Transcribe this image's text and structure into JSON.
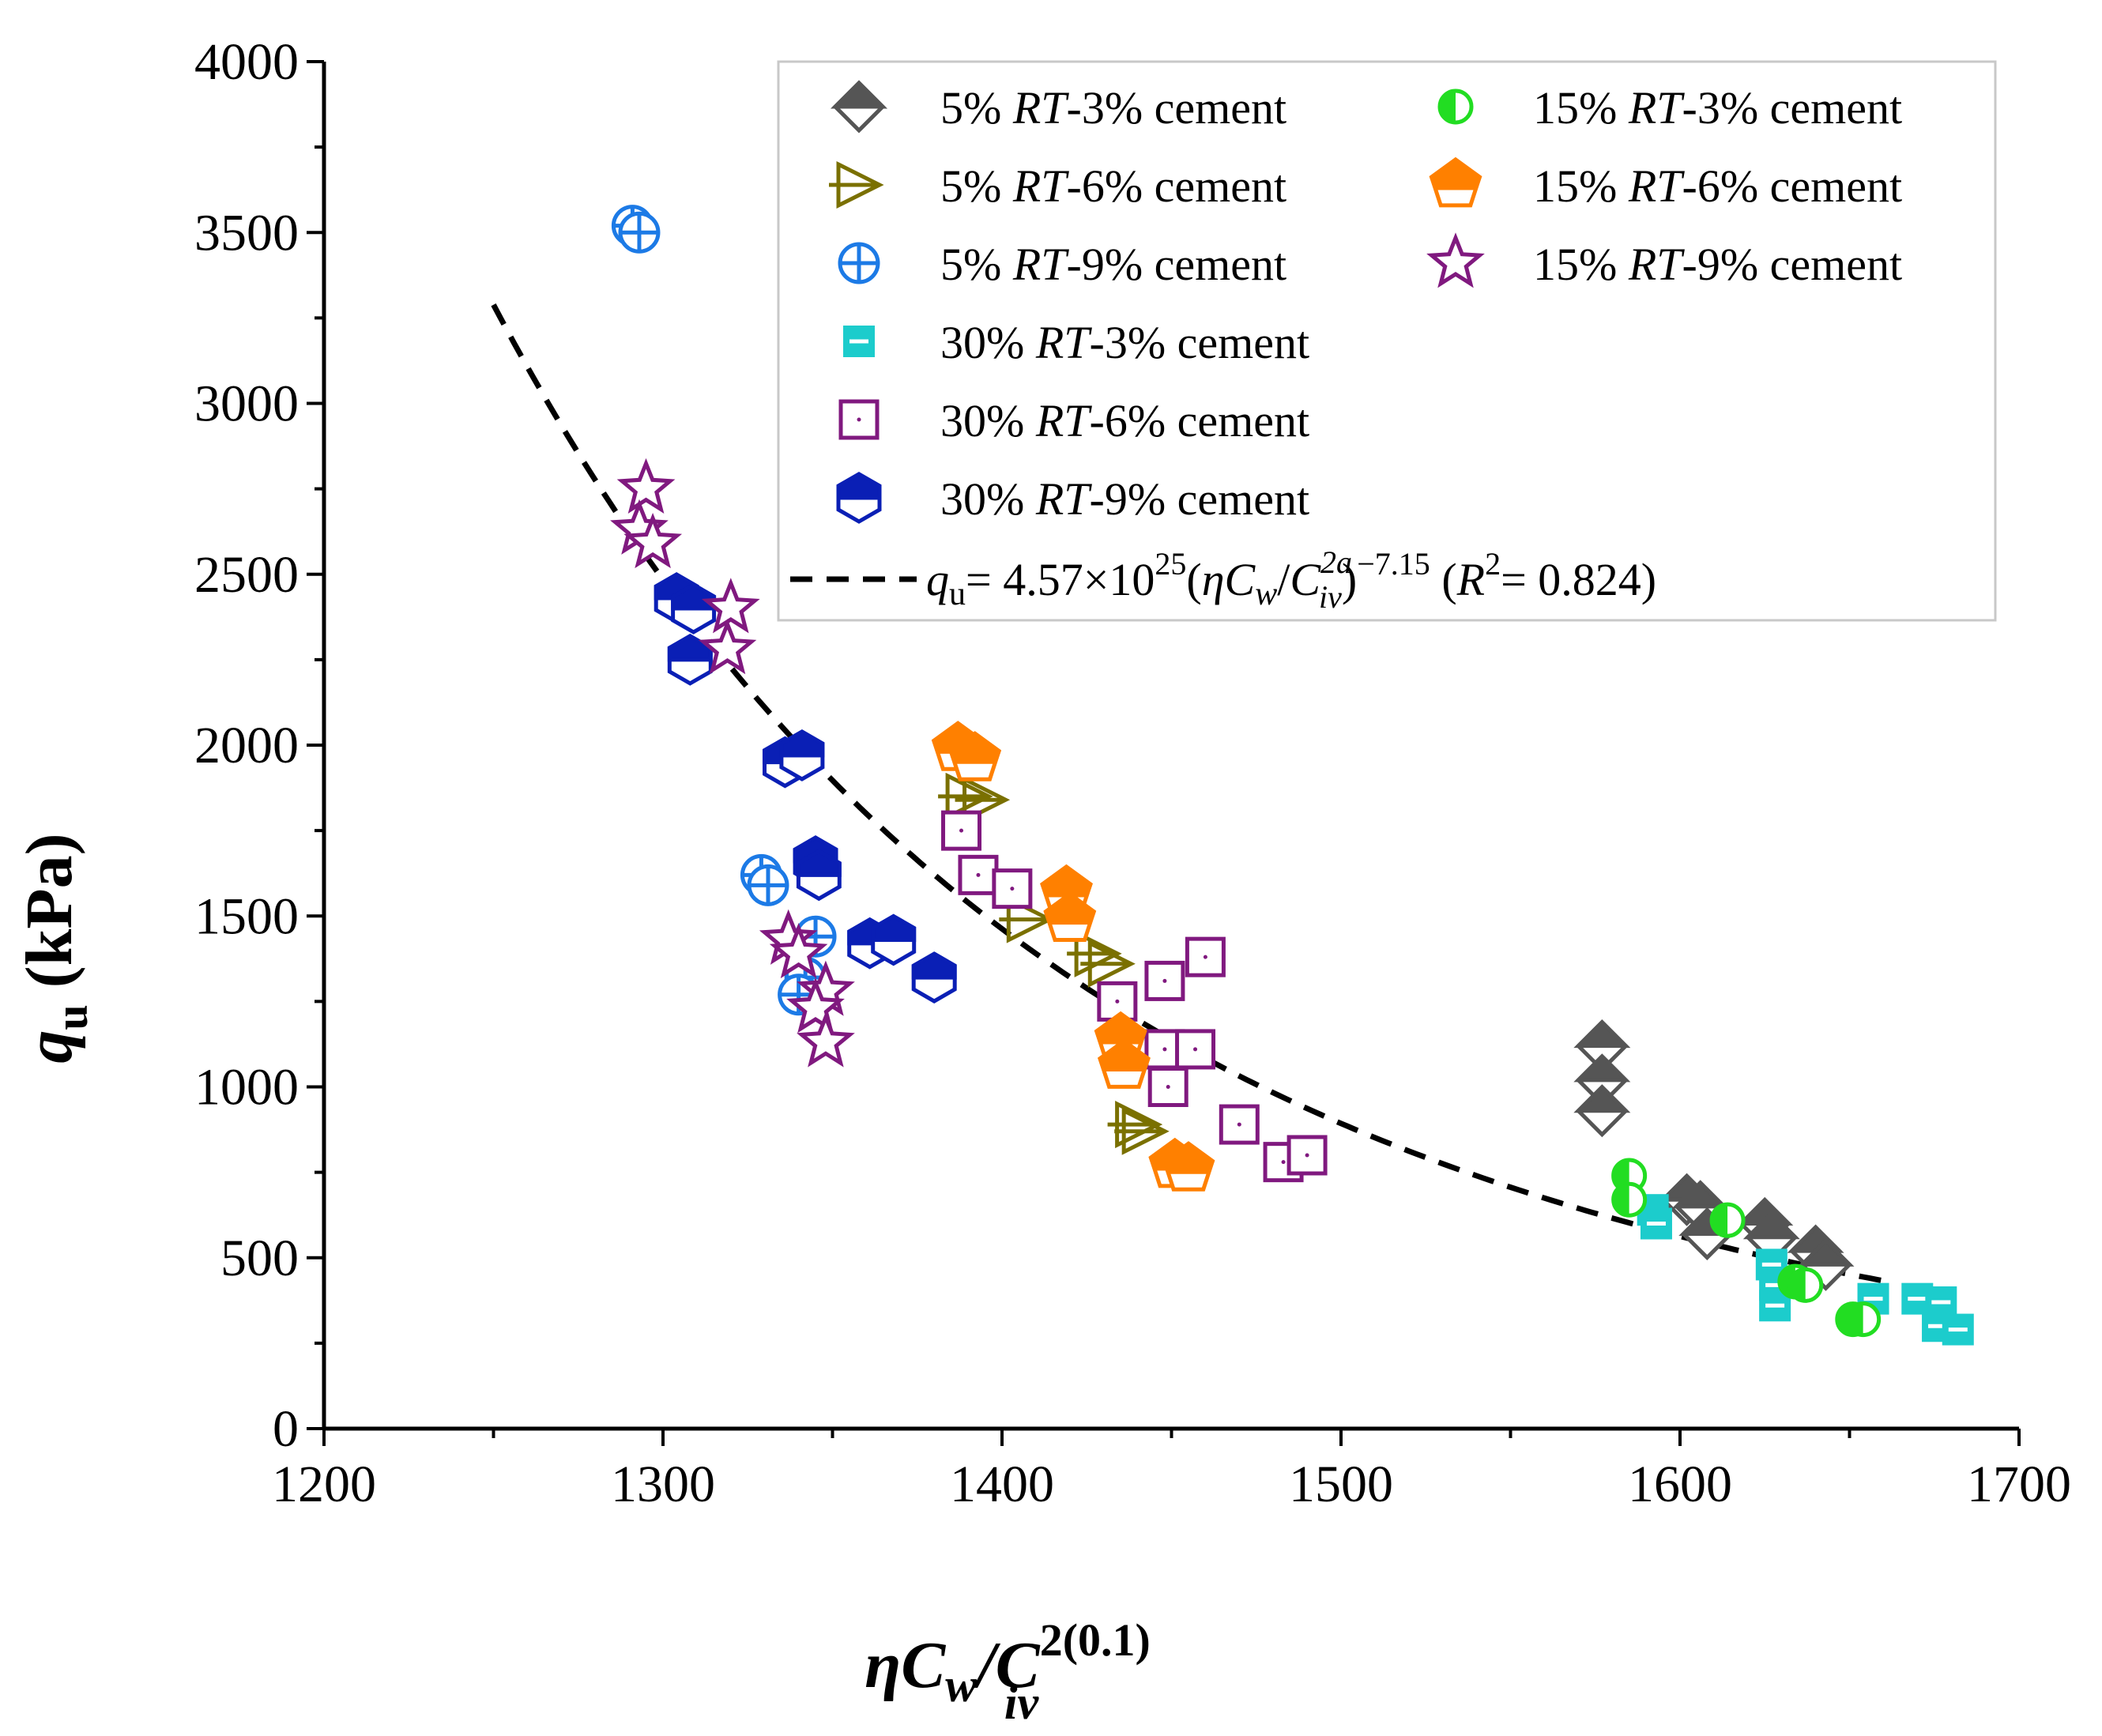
{
  "chart_data": {
    "type": "scatter",
    "title": "",
    "xlabel": {
      "eta": "η",
      "cw": "C",
      "cw_sub": "w",
      "slash": "/",
      "civ": "C",
      "civ_sub": "iv",
      "civ_sup": "2(0.1)"
    },
    "ylabel": {
      "q": "q",
      "sub": "u",
      "unit": " (kPa)"
    },
    "xlim": [
      1200,
      1700
    ],
    "ylim": [
      0,
      4000
    ],
    "xticks": [
      1200,
      1300,
      1400,
      1500,
      1600,
      1700
    ],
    "yticks": [
      0,
      500,
      1000,
      1500,
      2000,
      2500,
      3000,
      3500,
      4000
    ],
    "legend_position": "top-right",
    "series": [
      {
        "name": "5% RT-3% cement",
        "prefix": "5% ",
        "rt": "RT",
        "suffix": "-3% cement",
        "marker": "diamond-half",
        "color": "#555555",
        "points": [
          [
            1577,
            1120
          ],
          [
            1577,
            1020
          ],
          [
            1577,
            930
          ],
          [
            1602,
            670
          ],
          [
            1606,
            650
          ],
          [
            1608,
            570
          ],
          [
            1625,
            600
          ],
          [
            1627,
            560
          ],
          [
            1640,
            520
          ],
          [
            1643,
            480
          ]
        ]
      },
      {
        "name": "5% RT-6% cement",
        "prefix": "5% ",
        "rt": "RT",
        "suffix": "-6% cement",
        "marker": "arrow-right",
        "color": "#7a7000",
        "points": [
          [
            1390,
            1850
          ],
          [
            1395,
            1840
          ],
          [
            1408,
            1490
          ],
          [
            1428,
            1390
          ],
          [
            1432,
            1360
          ],
          [
            1440,
            890
          ],
          [
            1442,
            870
          ]
        ]
      },
      {
        "name": "5% RT-9% cement",
        "prefix": "5% ",
        "rt": "RT",
        "suffix": "-9% cement",
        "marker": "circle-plus",
        "color": "#1c7ae6",
        "points": [
          [
            1291,
            3520
          ],
          [
            1293,
            3500
          ],
          [
            1329,
            1620
          ],
          [
            1331,
            1590
          ],
          [
            1345,
            1440
          ],
          [
            1342,
            1320
          ],
          [
            1340,
            1270
          ]
        ]
      },
      {
        "name": "30% RT-3% cement",
        "prefix": "30% ",
        "rt": "RT",
        "suffix": "-3% cement",
        "marker": "square-stripe",
        "color": "#1ccccc",
        "points": [
          [
            1592,
            640
          ],
          [
            1593,
            600
          ],
          [
            1627,
            480
          ],
          [
            1628,
            420
          ],
          [
            1628,
            360
          ],
          [
            1657,
            380
          ],
          [
            1670,
            380
          ],
          [
            1677,
            370
          ],
          [
            1676,
            300
          ],
          [
            1682,
            290
          ]
        ]
      },
      {
        "name": "30% RT-6% cement",
        "prefix": "30% ",
        "rt": "RT",
        "suffix": "-6% cement",
        "marker": "square-dot",
        "color": "#80197f",
        "points": [
          [
            1388,
            1750
          ],
          [
            1393,
            1620
          ],
          [
            1403,
            1580
          ],
          [
            1434,
            1250
          ],
          [
            1448,
            1310
          ],
          [
            1460,
            1380
          ],
          [
            1448,
            1110
          ],
          [
            1457,
            1110
          ],
          [
            1449,
            1000
          ],
          [
            1470,
            890
          ],
          [
            1483,
            780
          ],
          [
            1490,
            800
          ]
        ]
      },
      {
        "name": "30% RT-9% cement",
        "prefix": "30% ",
        "rt": "RT",
        "suffix": "-9% cement",
        "marker": "hexagon-half",
        "color": "#0a1fb5",
        "points": [
          [
            1304,
            2430
          ],
          [
            1309,
            2400
          ],
          [
            1308,
            2250
          ],
          [
            1336,
            1950
          ],
          [
            1341,
            1970
          ],
          [
            1345,
            1660
          ],
          [
            1346,
            1620
          ],
          [
            1361,
            1420
          ],
          [
            1368,
            1430
          ],
          [
            1380,
            1320
          ]
        ]
      },
      {
        "name": "15% RT-3% cement",
        "prefix": "15% ",
        "rt": "RT",
        "suffix": "-3% cement",
        "marker": "circle-half",
        "color": "#22dd22",
        "points": [
          [
            1585,
            740
          ],
          [
            1585,
            670
          ],
          [
            1614,
            610
          ],
          [
            1634,
            430
          ],
          [
            1637,
            420
          ],
          [
            1651,
            320
          ],
          [
            1654,
            320
          ]
        ]
      },
      {
        "name": "15% RT-6% cement",
        "prefix": "15% ",
        "rt": "RT",
        "suffix": "-6% cement",
        "marker": "pentagon-half",
        "color": "#ff8000",
        "points": [
          [
            1387,
            1990
          ],
          [
            1392,
            1960
          ],
          [
            1419,
            1570
          ],
          [
            1420,
            1490
          ],
          [
            1435,
            1140
          ],
          [
            1436,
            1060
          ],
          [
            1451,
            770
          ],
          [
            1455,
            760
          ]
        ]
      },
      {
        "name": "15% RT-9% cement",
        "prefix": "15% ",
        "rt": "RT",
        "suffix": "-9% cement",
        "marker": "star",
        "color": "#80197f",
        "points": [
          [
            1295,
            2750
          ],
          [
            1293,
            2630
          ],
          [
            1297,
            2590
          ],
          [
            1320,
            2400
          ],
          [
            1319,
            2280
          ],
          [
            1337,
            1430
          ],
          [
            1340,
            1390
          ],
          [
            1348,
            1280
          ],
          [
            1345,
            1230
          ],
          [
            1348,
            1130
          ]
        ]
      }
    ],
    "fit": {
      "label_q": "q",
      "label_sub": "u",
      "label_eq": "= 4.57×10",
      "label_exp": "25",
      "label_paren_open": "(",
      "label_eta": "η",
      "label_cw": "C",
      "label_cw_sub": "w",
      "label_slash": "/",
      "label_civ": "C",
      "label_civ_sup": "2a",
      "label_civ_sub": "iv",
      "label_paren_close": ")",
      "label_pow": "−7.15",
      "label_r2_open": " (",
      "label_r": "R",
      "label_r2_sup": "2",
      "label_r2_val": "= 0.824)",
      "coefficient": 4.57e+25,
      "exponent": -7.15,
      "r2": 0.824,
      "x_range": [
        1250,
        1660
      ],
      "color": "#000000"
    }
  }
}
